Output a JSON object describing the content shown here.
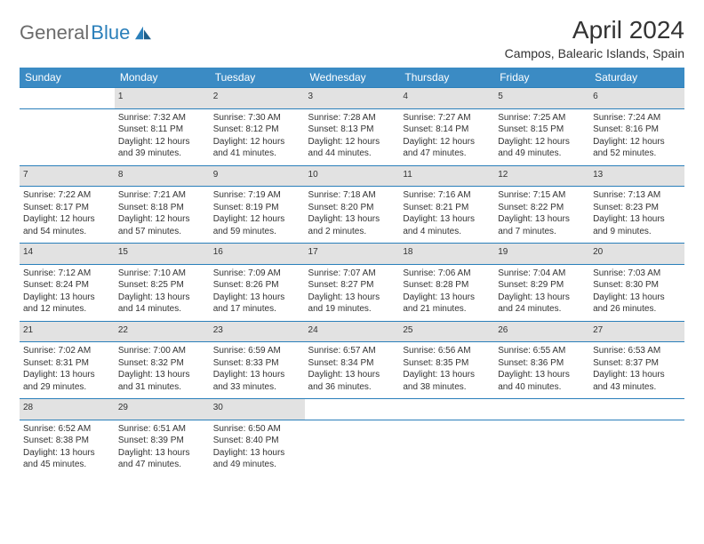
{
  "brand": {
    "name_gray": "General",
    "name_blue": "Blue"
  },
  "title": "April 2024",
  "location": "Campos, Balearic Islands, Spain",
  "colors": {
    "header_bg": "#3b8bc4",
    "header_text": "#ffffff",
    "daynum_bg": "#e2e2e2",
    "row_border": "#2a7fba",
    "body_text": "#333333",
    "logo_gray": "#6b6b6b",
    "logo_blue": "#2a7fba"
  },
  "dayNames": [
    "Sunday",
    "Monday",
    "Tuesday",
    "Wednesday",
    "Thursday",
    "Friday",
    "Saturday"
  ],
  "weeks": [
    [
      null,
      {
        "n": "1",
        "sr": "7:32 AM",
        "ss": "8:11 PM",
        "dl": "12 hours and 39 minutes."
      },
      {
        "n": "2",
        "sr": "7:30 AM",
        "ss": "8:12 PM",
        "dl": "12 hours and 41 minutes."
      },
      {
        "n": "3",
        "sr": "7:28 AM",
        "ss": "8:13 PM",
        "dl": "12 hours and 44 minutes."
      },
      {
        "n": "4",
        "sr": "7:27 AM",
        "ss": "8:14 PM",
        "dl": "12 hours and 47 minutes."
      },
      {
        "n": "5",
        "sr": "7:25 AM",
        "ss": "8:15 PM",
        "dl": "12 hours and 49 minutes."
      },
      {
        "n": "6",
        "sr": "7:24 AM",
        "ss": "8:16 PM",
        "dl": "12 hours and 52 minutes."
      }
    ],
    [
      {
        "n": "7",
        "sr": "7:22 AM",
        "ss": "8:17 PM",
        "dl": "12 hours and 54 minutes."
      },
      {
        "n": "8",
        "sr": "7:21 AM",
        "ss": "8:18 PM",
        "dl": "12 hours and 57 minutes."
      },
      {
        "n": "9",
        "sr": "7:19 AM",
        "ss": "8:19 PM",
        "dl": "12 hours and 59 minutes."
      },
      {
        "n": "10",
        "sr": "7:18 AM",
        "ss": "8:20 PM",
        "dl": "13 hours and 2 minutes."
      },
      {
        "n": "11",
        "sr": "7:16 AM",
        "ss": "8:21 PM",
        "dl": "13 hours and 4 minutes."
      },
      {
        "n": "12",
        "sr": "7:15 AM",
        "ss": "8:22 PM",
        "dl": "13 hours and 7 minutes."
      },
      {
        "n": "13",
        "sr": "7:13 AM",
        "ss": "8:23 PM",
        "dl": "13 hours and 9 minutes."
      }
    ],
    [
      {
        "n": "14",
        "sr": "7:12 AM",
        "ss": "8:24 PM",
        "dl": "13 hours and 12 minutes."
      },
      {
        "n": "15",
        "sr": "7:10 AM",
        "ss": "8:25 PM",
        "dl": "13 hours and 14 minutes."
      },
      {
        "n": "16",
        "sr": "7:09 AM",
        "ss": "8:26 PM",
        "dl": "13 hours and 17 minutes."
      },
      {
        "n": "17",
        "sr": "7:07 AM",
        "ss": "8:27 PM",
        "dl": "13 hours and 19 minutes."
      },
      {
        "n": "18",
        "sr": "7:06 AM",
        "ss": "8:28 PM",
        "dl": "13 hours and 21 minutes."
      },
      {
        "n": "19",
        "sr": "7:04 AM",
        "ss": "8:29 PM",
        "dl": "13 hours and 24 minutes."
      },
      {
        "n": "20",
        "sr": "7:03 AM",
        "ss": "8:30 PM",
        "dl": "13 hours and 26 minutes."
      }
    ],
    [
      {
        "n": "21",
        "sr": "7:02 AM",
        "ss": "8:31 PM",
        "dl": "13 hours and 29 minutes."
      },
      {
        "n": "22",
        "sr": "7:00 AM",
        "ss": "8:32 PM",
        "dl": "13 hours and 31 minutes."
      },
      {
        "n": "23",
        "sr": "6:59 AM",
        "ss": "8:33 PM",
        "dl": "13 hours and 33 minutes."
      },
      {
        "n": "24",
        "sr": "6:57 AM",
        "ss": "8:34 PM",
        "dl": "13 hours and 36 minutes."
      },
      {
        "n": "25",
        "sr": "6:56 AM",
        "ss": "8:35 PM",
        "dl": "13 hours and 38 minutes."
      },
      {
        "n": "26",
        "sr": "6:55 AM",
        "ss": "8:36 PM",
        "dl": "13 hours and 40 minutes."
      },
      {
        "n": "27",
        "sr": "6:53 AM",
        "ss": "8:37 PM",
        "dl": "13 hours and 43 minutes."
      }
    ],
    [
      {
        "n": "28",
        "sr": "6:52 AM",
        "ss": "8:38 PM",
        "dl": "13 hours and 45 minutes."
      },
      {
        "n": "29",
        "sr": "6:51 AM",
        "ss": "8:39 PM",
        "dl": "13 hours and 47 minutes."
      },
      {
        "n": "30",
        "sr": "6:50 AM",
        "ss": "8:40 PM",
        "dl": "13 hours and 49 minutes."
      },
      null,
      null,
      null,
      null
    ]
  ],
  "labels": {
    "sunrise": "Sunrise:",
    "sunset": "Sunset:",
    "daylight": "Daylight:"
  }
}
